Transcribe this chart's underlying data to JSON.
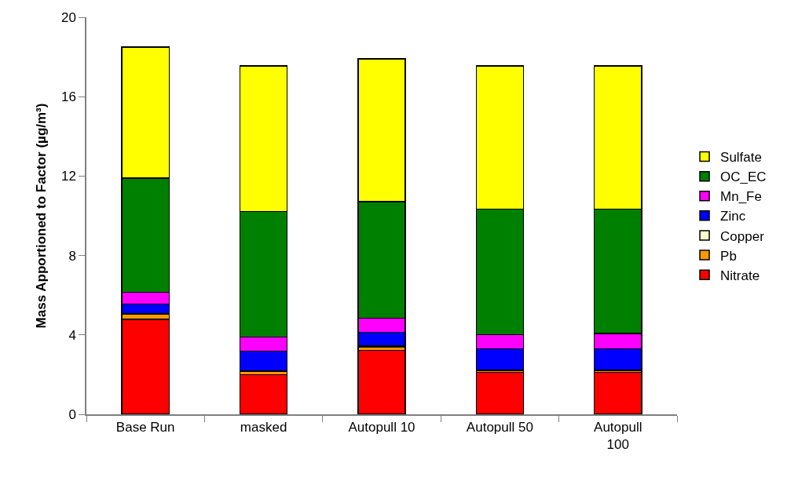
{
  "chart_data": {
    "type": "bar",
    "stacked": true,
    "ylabel": "Mass Apportioned to Factor (µg/m³)",
    "categories": [
      "Base Run",
      "masked",
      "Autopull 10",
      "Autopull 50",
      "Autopull 100"
    ],
    "series": [
      {
        "name": "Nitrate",
        "color": "#ff0000",
        "values": [
          4.78,
          2.0,
          3.23,
          2.11,
          2.11
        ]
      },
      {
        "name": "Pb",
        "color": "#ff9900",
        "values": [
          0.25,
          0.15,
          0.17,
          0.09,
          0.09
        ]
      },
      {
        "name": "Copper",
        "color": "#ffffcc",
        "values": [
          0.05,
          0.03,
          0.04,
          0.03,
          0.03
        ]
      },
      {
        "name": "Zinc",
        "color": "#0000ff",
        "values": [
          0.48,
          1.01,
          0.69,
          1.08,
          1.08
        ]
      },
      {
        "name": "Mn_Fe",
        "color": "#ff00ff",
        "values": [
          0.59,
          0.71,
          0.72,
          0.71,
          0.77
        ]
      },
      {
        "name": "OC_EC",
        "color": "#008000",
        "values": [
          5.75,
          6.32,
          5.86,
          6.31,
          6.25
        ]
      },
      {
        "name": "Sulfate",
        "color": "#ffff00",
        "values": [
          6.6,
          7.33,
          7.19,
          7.22,
          7.22
        ]
      }
    ],
    "ylim": [
      0,
      20
    ],
    "yticks": [
      0,
      4,
      8,
      12,
      16,
      20
    ],
    "legend": "right"
  }
}
